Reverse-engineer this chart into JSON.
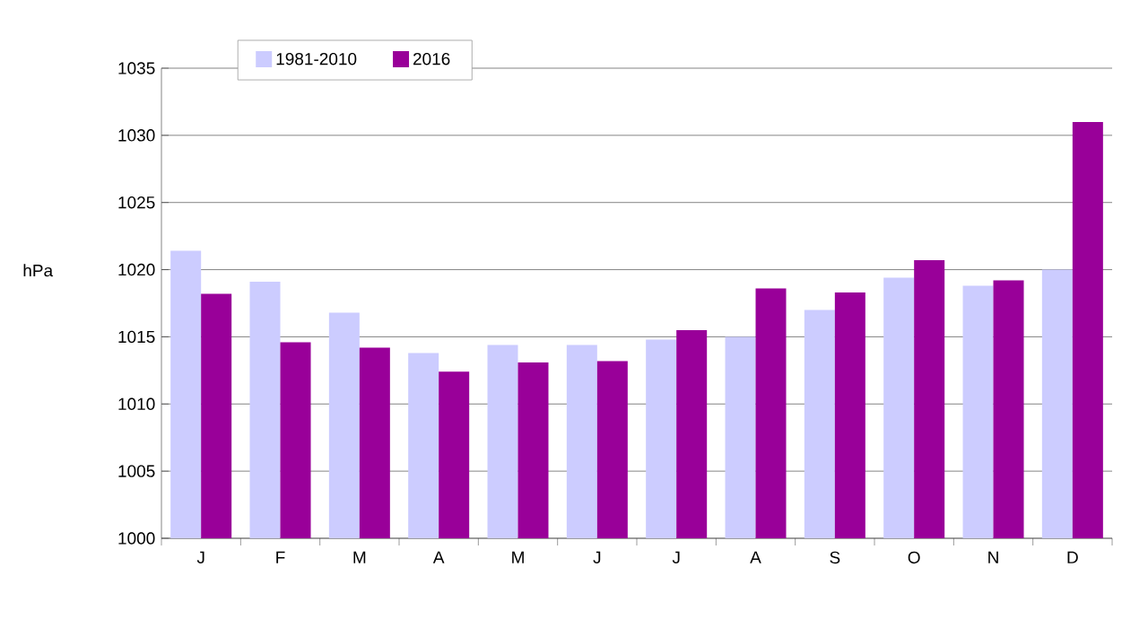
{
  "chart_data": {
    "type": "bar",
    "ylabel": "hPa",
    "categories": [
      "J",
      "F",
      "M",
      "A",
      "M",
      "J",
      "J",
      "A",
      "S",
      "O",
      "N",
      "D"
    ],
    "series": [
      {
        "name": "1981-2010",
        "color": "#ccccff",
        "values": [
          1021.4,
          1019.1,
          1016.8,
          1013.8,
          1014.4,
          1014.4,
          1014.8,
          1015.0,
          1017.0,
          1019.4,
          1018.8,
          1020.0
        ]
      },
      {
        "name": "2016",
        "color": "#990099",
        "values": [
          1018.2,
          1014.6,
          1014.2,
          1012.4,
          1013.1,
          1013.2,
          1015.5,
          1018.6,
          1018.3,
          1020.7,
          1019.2,
          1031.0
        ]
      }
    ],
    "ylim": [
      1000,
      1035
    ],
    "yticks": [
      1000,
      1005,
      1010,
      1015,
      1020,
      1025,
      1030,
      1035
    ],
    "grid": "y",
    "legend": "top"
  }
}
